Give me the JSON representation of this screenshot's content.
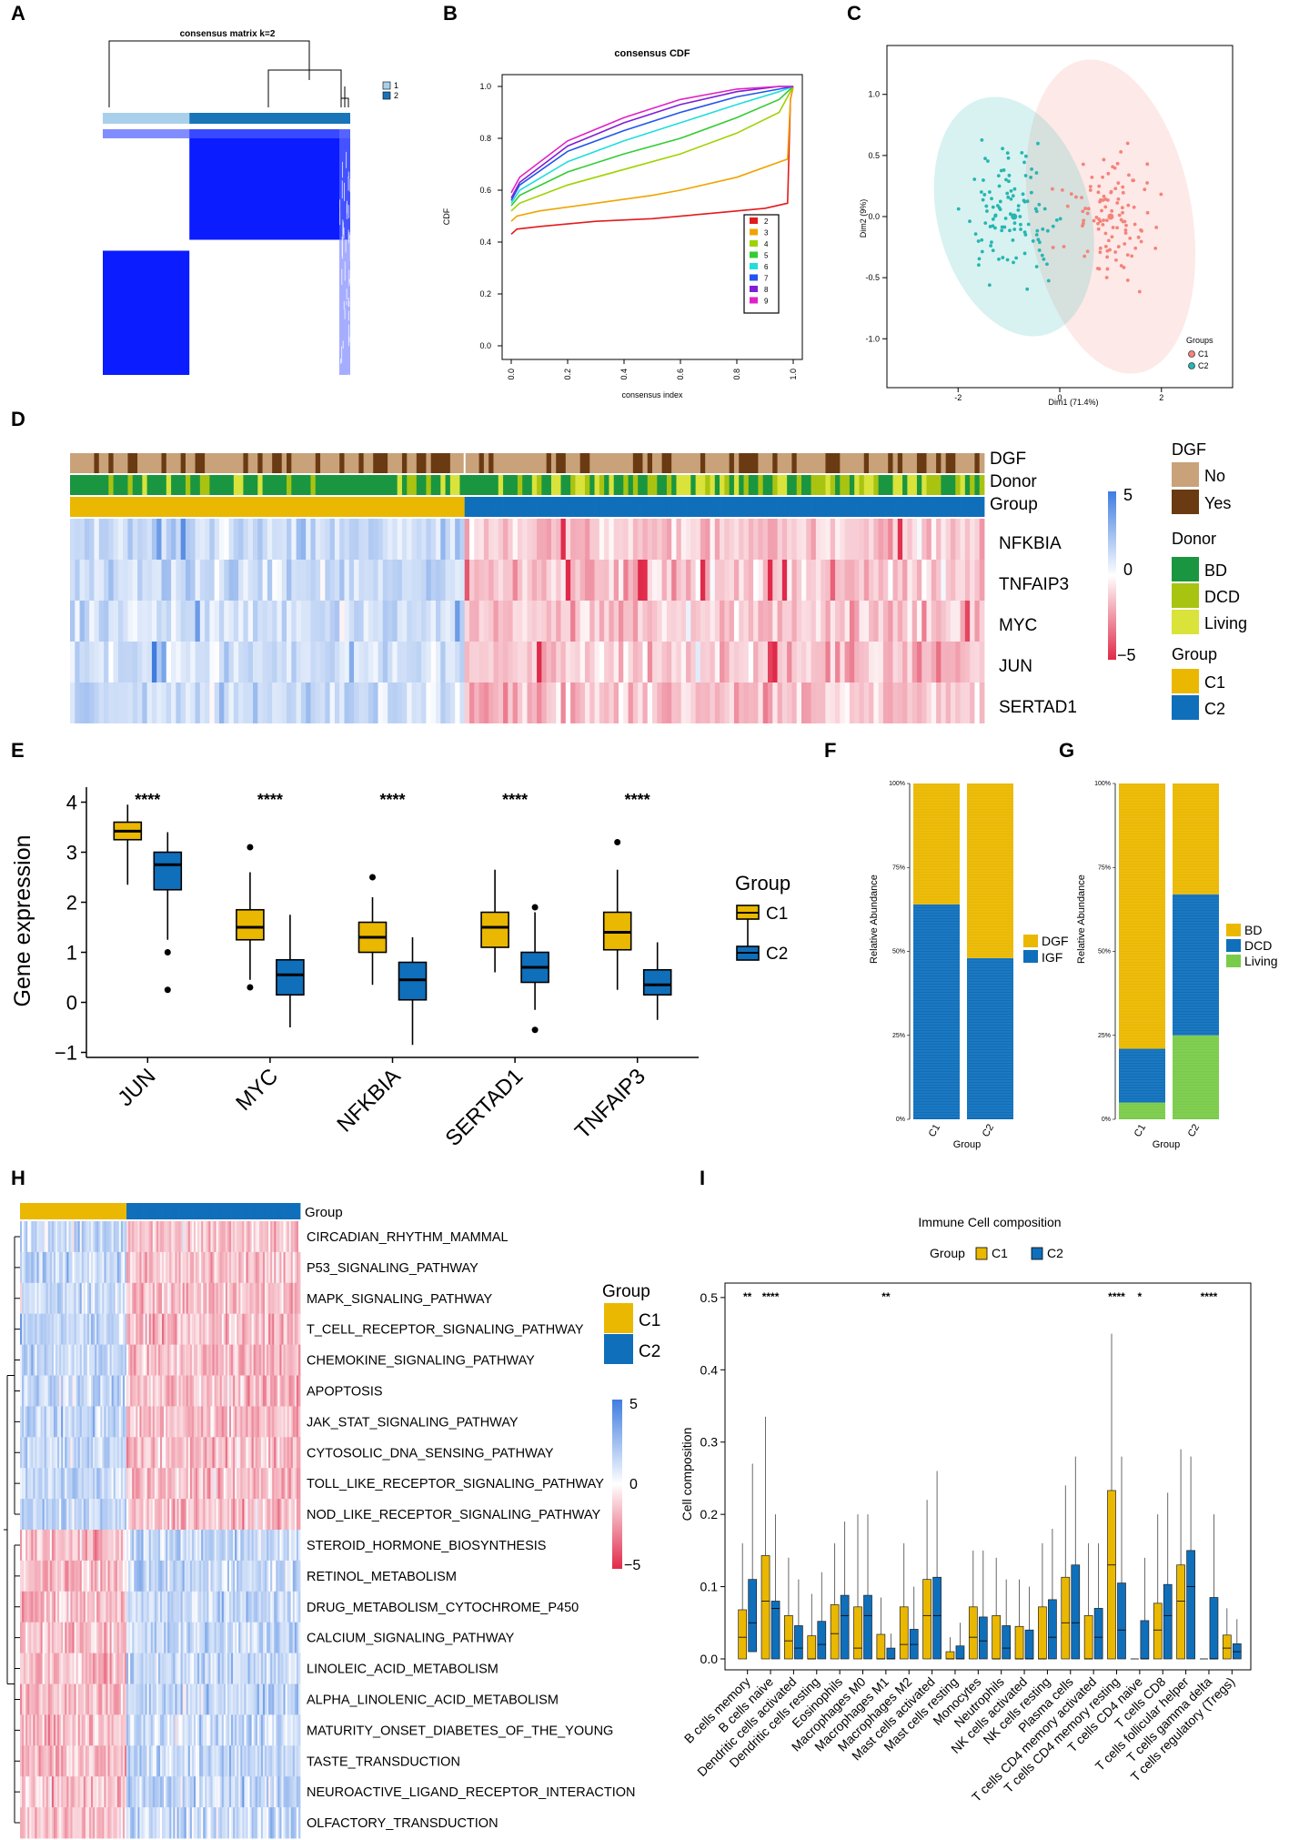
{
  "panel_letters": [
    "A",
    "B",
    "C",
    "D",
    "E",
    "F",
    "G",
    "H",
    "I"
  ],
  "colors": {
    "c1_gold": "#eab800",
    "c2_blue": "#0f6fbb",
    "matrix_blue": "#0b1cff",
    "light_blue": "#a9d0ea",
    "hm_red": "#e02a4a",
    "hm_blue": "#3f7de0",
    "dgf_no": "#c9a27a",
    "dgf_yes": "#6a3a12",
    "donor_bd": "#1a9640",
    "donor_dcd": "#a9c311",
    "donor_living": "#d9e33a",
    "living_green": "#7acb4a",
    "pca_c1": "#f4837a",
    "pca_c2": "#27b6b0"
  },
  "chart_data": [
    {
      "panel": "A",
      "type": "heatmap",
      "title": "consensus matrix k=2",
      "legend": [
        "1",
        "2"
      ],
      "cluster_fraction": [
        0.35,
        0.65
      ]
    },
    {
      "panel": "B",
      "type": "line",
      "title": "consensus CDF",
      "xlabel": "consensus index",
      "ylabel": "CDF",
      "xlim": [
        0,
        1
      ],
      "ylim": [
        0,
        1
      ],
      "xticks": [
        "0.0",
        "0.2",
        "0.4",
        "0.6",
        "0.8",
        "1.0"
      ],
      "yticks": [
        "0.0",
        "0.2",
        "0.4",
        "0.6",
        "0.8",
        "1.0"
      ],
      "series": [
        {
          "name": "2",
          "color": "#e41a1c",
          "x": [
            0,
            0.02,
            0.1,
            0.3,
            0.5,
            0.7,
            0.9,
            0.98,
            0.99,
            1.0
          ],
          "y": [
            0.43,
            0.45,
            0.46,
            0.48,
            0.49,
            0.51,
            0.53,
            0.55,
            0.95,
            1.0
          ]
        },
        {
          "name": "3",
          "color": "#f0a400",
          "x": [
            0,
            0.02,
            0.1,
            0.3,
            0.5,
            0.6,
            0.8,
            0.98,
            0.99,
            1.0
          ],
          "y": [
            0.48,
            0.5,
            0.52,
            0.55,
            0.58,
            0.6,
            0.65,
            0.72,
            0.95,
            1.0
          ]
        },
        {
          "name": "4",
          "color": "#9ed300",
          "x": [
            0,
            0.03,
            0.2,
            0.4,
            0.6,
            0.8,
            0.95,
            1.0
          ],
          "y": [
            0.52,
            0.55,
            0.62,
            0.68,
            0.74,
            0.82,
            0.9,
            1.0
          ]
        },
        {
          "name": "5",
          "color": "#33cc33",
          "x": [
            0,
            0.03,
            0.2,
            0.4,
            0.6,
            0.8,
            0.95,
            1.0
          ],
          "y": [
            0.54,
            0.58,
            0.67,
            0.74,
            0.8,
            0.88,
            0.95,
            1.0
          ]
        },
        {
          "name": "6",
          "color": "#22dddd",
          "x": [
            0,
            0.03,
            0.2,
            0.4,
            0.6,
            0.8,
            0.95,
            1.0
          ],
          "y": [
            0.55,
            0.6,
            0.71,
            0.79,
            0.86,
            0.93,
            0.98,
            1.0
          ]
        },
        {
          "name": "7",
          "color": "#2255ee",
          "x": [
            0,
            0.03,
            0.2,
            0.4,
            0.6,
            0.8,
            0.95,
            1.0
          ],
          "y": [
            0.56,
            0.62,
            0.75,
            0.83,
            0.9,
            0.96,
            0.99,
            1.0
          ]
        },
        {
          "name": "8",
          "color": "#7f1fd6",
          "x": [
            0,
            0.03,
            0.2,
            0.4,
            0.6,
            0.8,
            0.95,
            1.0
          ],
          "y": [
            0.57,
            0.63,
            0.77,
            0.86,
            0.93,
            0.98,
            1.0,
            1.0
          ]
        },
        {
          "name": "9",
          "color": "#e021c8",
          "x": [
            0,
            0.03,
            0.2,
            0.4,
            0.6,
            0.8,
            0.95,
            1.0
          ],
          "y": [
            0.59,
            0.65,
            0.79,
            0.88,
            0.95,
            0.99,
            1.0,
            1.0
          ]
        }
      ]
    },
    {
      "panel": "C",
      "type": "scatter",
      "xlabel": "Dim1 (71.4%)",
      "ylabel": "Dim2 (9%)",
      "xlim": [
        -3.4,
        3.4
      ],
      "ylim": [
        -1.4,
        1.4
      ],
      "xticks": [
        -2,
        0,
        2
      ],
      "yticks": [
        "1.0",
        "0.5",
        "0.0",
        "-0.5",
        "-1.0"
      ],
      "legend_title": "Groups",
      "groups": [
        {
          "name": "C1",
          "center": [
            1.0,
            0.0
          ],
          "ellipse": {
            "rx": 1.6,
            "ry": 1.3,
            "angle": -10
          }
        },
        {
          "name": "C2",
          "center": [
            -0.9,
            0.0
          ],
          "ellipse": {
            "rx": 1.5,
            "ry": 1.0,
            "angle": -15
          }
        }
      ],
      "points_per_group": 110
    },
    {
      "panel": "D",
      "type": "heatmap",
      "annotations": [
        "DGF",
        "Donor",
        "Group"
      ],
      "genes": [
        "NFKBIA",
        "TNFAIP3",
        "MYC",
        "JUN",
        "SERTAD1"
      ],
      "group_fraction": [
        0.43,
        0.57
      ],
      "colorbar": [
        "5",
        "0",
        "−5"
      ],
      "legends": [
        {
          "title": "DGF",
          "items": [
            "No",
            "Yes"
          ]
        },
        {
          "title": "Donor",
          "items": [
            "BD",
            "DCD",
            "Living"
          ]
        },
        {
          "title": "Group",
          "items": [
            "C1",
            "C2"
          ]
        }
      ]
    },
    {
      "panel": "E",
      "type": "box",
      "ylabel": "Gene expression",
      "ylim": [
        -1.1,
        4.3
      ],
      "yticks": [
        "4",
        "3",
        "2",
        "1",
        "0",
        "−1"
      ],
      "legend_title": "Group",
      "legend": [
        "C1",
        "C2"
      ],
      "significance": "****",
      "categories": [
        "JUN",
        "MYC",
        "NFKBIA",
        "SERTAD1",
        "TNFAIP3"
      ],
      "C1": [
        {
          "min": 2.35,
          "q1": 3.25,
          "med": 3.42,
          "q3": 3.6,
          "max": 3.95,
          "out": []
        },
        {
          "min": 0.45,
          "q1": 1.25,
          "med": 1.5,
          "q3": 1.85,
          "max": 2.6,
          "out": [
            3.1,
            0.3
          ]
        },
        {
          "min": 0.35,
          "q1": 1.0,
          "med": 1.3,
          "q3": 1.6,
          "max": 2.1,
          "out": [
            2.5
          ]
        },
        {
          "min": 0.6,
          "q1": 1.1,
          "med": 1.5,
          "q3": 1.8,
          "max": 2.65,
          "out": []
        },
        {
          "min": 0.25,
          "q1": 1.05,
          "med": 1.4,
          "q3": 1.8,
          "max": 2.65,
          "out": [
            3.2
          ]
        }
      ],
      "C2": [
        {
          "min": 1.25,
          "q1": 2.25,
          "med": 2.75,
          "q3": 3.0,
          "max": 3.4,
          "out": [
            1.0,
            0.25
          ]
        },
        {
          "min": -0.5,
          "q1": 0.15,
          "med": 0.55,
          "q3": 0.85,
          "max": 1.75,
          "out": []
        },
        {
          "min": -0.85,
          "q1": 0.05,
          "med": 0.45,
          "q3": 0.8,
          "max": 1.3,
          "out": []
        },
        {
          "min": -0.15,
          "q1": 0.4,
          "med": 0.7,
          "q3": 1.0,
          "max": 1.8,
          "out": [
            1.9,
            -0.55
          ]
        },
        {
          "min": -0.35,
          "q1": 0.15,
          "med": 0.35,
          "q3": 0.65,
          "max": 1.2,
          "out": []
        }
      ]
    },
    {
      "panel": "F",
      "type": "bar",
      "xlabel": "Group",
      "ylabel": "Relative Abundance",
      "categories": [
        "C1",
        "C2"
      ],
      "yticks": [
        "100%",
        "75%",
        "50%",
        "25%",
        "0%"
      ],
      "series": [
        {
          "name": "IGF",
          "values": [
            64,
            48
          ]
        },
        {
          "name": "DGF",
          "values": [
            36,
            52
          ]
        }
      ],
      "legend": [
        "DGF",
        "IGF"
      ]
    },
    {
      "panel": "G",
      "type": "bar",
      "xlabel": "Group",
      "ylabel": "Relative Abundance",
      "categories": [
        "C1",
        "C2"
      ],
      "yticks": [
        "100%",
        "75%",
        "50%",
        "25%",
        "0%"
      ],
      "series": [
        {
          "name": "Living",
          "values": [
            5,
            25
          ]
        },
        {
          "name": "DCD",
          "values": [
            16,
            42
          ]
        },
        {
          "name": "BD",
          "values": [
            79,
            33
          ]
        }
      ],
      "legend": [
        "BD",
        "DCD",
        "Living"
      ]
    },
    {
      "panel": "H",
      "type": "heatmap",
      "annotation": "Group",
      "group_fraction": [
        0.38,
        0.62
      ],
      "pathways": [
        "CIRCADIAN_RHYTHM_MAMMAL",
        "P53_SIGNALING_PATHWAY",
        "MAPK_SIGNALING_PATHWAY",
        "T_CELL_RECEPTOR_SIGNALING_PATHWAY",
        "CHEMOKINE_SIGNALING_PATHWAY",
        "APOPTOSIS",
        "JAK_STAT_SIGNALING_PATHWAY",
        "CYTOSOLIC_DNA_SENSING_PATHWAY",
        "TOLL_LIKE_RECEPTOR_SIGNALING_PATHWAY",
        "NOD_LIKE_RECEPTOR_SIGNALING_PATHWAY",
        "STEROID_HORMONE_BIOSYNTHESIS",
        "RETINOL_METABOLISM",
        "DRUG_METABOLISM_CYTOCHROME_P450",
        "CALCIUM_SIGNALING_PATHWAY",
        "LINOLEIC_ACID_METABOLISM",
        "ALPHA_LINOLENIC_ACID_METABOLISM",
        "MATURITY_ONSET_DIABETES_OF_THE_YOUNG",
        "TASTE_TRANSDUCTION",
        "NEUROACTIVE_LIGAND_RECEPTOR_INTERACTION",
        "OLFACTORY_TRANSDUCTION"
      ],
      "direction": [
        1,
        1,
        1,
        1,
        1,
        1,
        1,
        1,
        1,
        1,
        -1,
        -1,
        -1,
        -1,
        -1,
        -1,
        -1,
        -1,
        -1,
        -1
      ],
      "legend_title": "Group",
      "legend": [
        "C1",
        "C2"
      ],
      "colorbar": [
        "5",
        "0",
        "−5"
      ]
    },
    {
      "panel": "I",
      "type": "box",
      "title": "Immune Cell composition",
      "legend_title": "Group",
      "legend": [
        "C1",
        "C2"
      ],
      "ylabel": "Cell composition",
      "ylim": [
        0,
        0.52
      ],
      "yticks": [
        "0.5",
        "0.4",
        "0.3",
        "0.2",
        "0.1",
        "0.0"
      ],
      "categories": [
        "B cells memory",
        "B cells naive",
        "Dendritic cells activated",
        "Dendritic cells resting",
        "Eosinophils",
        "Macrophages M0",
        "Macrophages M1",
        "Macrophages M2",
        "Mast cells activated",
        "Mast cells resting",
        "Monocytes",
        "Neutrophils",
        "NK cells activated",
        "NK cells resting",
        "Plasma cells",
        "T cells CD4 memory activated",
        "T cells CD4 memory resting",
        "T cells CD4 naive",
        "T cells CD8",
        "T cells follicular helper",
        "T cells gamma delta",
        "T cells regulatory (Tregs)"
      ],
      "significance": [
        "**",
        "****",
        "",
        "",
        "",
        "",
        "**",
        "",
        "",
        "",
        "",
        "",
        "",
        "",
        "",
        "",
        "****",
        "*",
        "",
        "",
        "****",
        ""
      ],
      "C1": [
        {
          "q1": 0.0,
          "med": 0.03,
          "q3": 0.068,
          "max": 0.16
        },
        {
          "q1": 0.0,
          "med": 0.08,
          "q3": 0.143,
          "max": 0.335
        },
        {
          "q1": 0.0,
          "med": 0.025,
          "q3": 0.06,
          "max": 0.14
        },
        {
          "q1": 0.0,
          "med": 0.0,
          "q3": 0.032,
          "max": 0.09
        },
        {
          "q1": 0.0,
          "med": 0.035,
          "q3": 0.075,
          "max": 0.16
        },
        {
          "q1": 0.0,
          "med": 0.015,
          "q3": 0.072,
          "max": 0.2
        },
        {
          "q1": 0.0,
          "med": 0.0,
          "q3": 0.034,
          "max": 0.085
        },
        {
          "q1": 0.0,
          "med": 0.02,
          "q3": 0.072,
          "max": 0.16
        },
        {
          "q1": 0.0,
          "med": 0.06,
          "q3": 0.11,
          "max": 0.22
        },
        {
          "q1": 0.0,
          "med": 0.0,
          "q3": 0.01,
          "max": 0.03
        },
        {
          "q1": 0.0,
          "med": 0.03,
          "q3": 0.072,
          "max": 0.15
        },
        {
          "q1": 0.0,
          "med": 0.0,
          "q3": 0.06,
          "max": 0.14
        },
        {
          "q1": 0.0,
          "med": 0.0,
          "q3": 0.045,
          "max": 0.11
        },
        {
          "q1": 0.0,
          "med": 0.0,
          "q3": 0.072,
          "max": 0.16
        },
        {
          "q1": 0.0,
          "med": 0.05,
          "q3": 0.113,
          "max": 0.24
        },
        {
          "q1": 0.0,
          "med": 0.0,
          "q3": 0.06,
          "max": 0.16
        },
        {
          "q1": 0.0,
          "med": 0.13,
          "q3": 0.233,
          "max": 0.45
        },
        {
          "q1": 0.0,
          "med": 0.0,
          "q3": 0.0,
          "max": 0.0
        },
        {
          "q1": 0.0,
          "med": 0.04,
          "q3": 0.077,
          "max": 0.2
        },
        {
          "q1": 0.0,
          "med": 0.08,
          "q3": 0.13,
          "max": 0.29
        },
        {
          "q1": 0.0,
          "med": 0.0,
          "q3": 0.0,
          "max": 0.0
        },
        {
          "q1": 0.0,
          "med": 0.015,
          "q3": 0.033,
          "max": 0.07
        }
      ],
      "C2": [
        {
          "q1": 0.01,
          "med": 0.05,
          "q3": 0.11,
          "max": 0.27
        },
        {
          "q1": 0.0,
          "med": 0.07,
          "q3": 0.08,
          "max": 0.2
        },
        {
          "q1": 0.0,
          "med": 0.015,
          "q3": 0.046,
          "max": 0.11
        },
        {
          "q1": 0.0,
          "med": 0.02,
          "q3": 0.052,
          "max": 0.12
        },
        {
          "q1": 0.0,
          "med": 0.06,
          "q3": 0.088,
          "max": 0.19
        },
        {
          "q1": 0.0,
          "med": 0.06,
          "q3": 0.088,
          "max": 0.2
        },
        {
          "q1": 0.0,
          "med": 0.0,
          "q3": 0.015,
          "max": 0.035
        },
        {
          "q1": 0.0,
          "med": 0.02,
          "q3": 0.041,
          "max": 0.1
        },
        {
          "q1": 0.0,
          "med": 0.06,
          "q3": 0.113,
          "max": 0.26
        },
        {
          "q1": 0.0,
          "med": 0.0,
          "q3": 0.018,
          "max": 0.05
        },
        {
          "q1": 0.0,
          "med": 0.025,
          "q3": 0.058,
          "max": 0.15
        },
        {
          "q1": 0.0,
          "med": 0.015,
          "q3": 0.046,
          "max": 0.11
        },
        {
          "q1": 0.0,
          "med": 0.0,
          "q3": 0.04,
          "max": 0.1
        },
        {
          "q1": 0.0,
          "med": 0.03,
          "q3": 0.082,
          "max": 0.18
        },
        {
          "q1": 0.0,
          "med": 0.05,
          "q3": 0.13,
          "max": 0.28
        },
        {
          "q1": 0.0,
          "med": 0.03,
          "q3": 0.07,
          "max": 0.16
        },
        {
          "q1": 0.0,
          "med": 0.04,
          "q3": 0.105,
          "max": 0.28
        },
        {
          "q1": 0.0,
          "med": 0.0,
          "q3": 0.053,
          "max": 0.14
        },
        {
          "q1": 0.0,
          "med": 0.06,
          "q3": 0.103,
          "max": 0.23
        },
        {
          "q1": 0.0,
          "med": 0.1,
          "q3": 0.15,
          "max": 0.28
        },
        {
          "q1": 0.0,
          "med": 0.0,
          "q3": 0.085,
          "max": 0.2
        },
        {
          "q1": 0.0,
          "med": 0.01,
          "q3": 0.021,
          "max": 0.055
        }
      ]
    }
  ]
}
